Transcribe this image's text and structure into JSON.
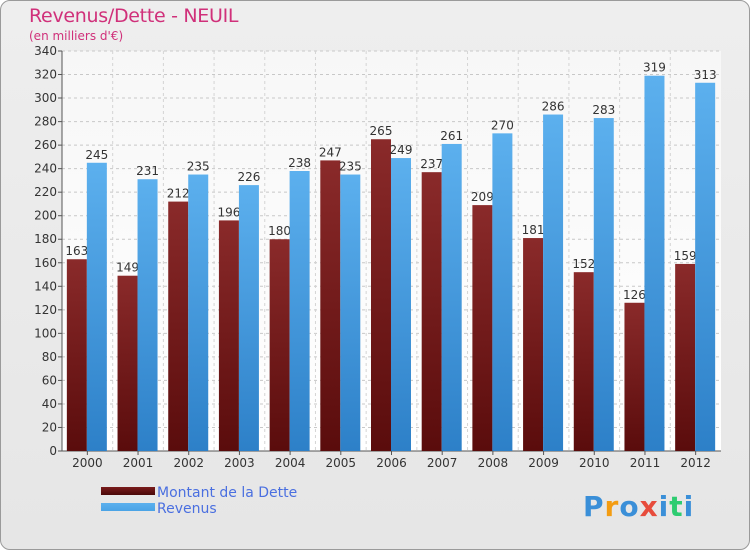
{
  "header": {
    "title": "Revenus/Dette - NEUIL",
    "subtitle": "(en milliers d'€)"
  },
  "chart_data": {
    "type": "bar",
    "categories": [
      "2000",
      "2001",
      "2002",
      "2003",
      "2004",
      "2005",
      "2006",
      "2007",
      "2008",
      "2009",
      "2010",
      "2011",
      "2012"
    ],
    "series": [
      {
        "name": "Montant de la Dette",
        "color": "#7a1c1c",
        "values": [
          163,
          149,
          212,
          196,
          180,
          247,
          265,
          237,
          209,
          181,
          152,
          126,
          159
        ]
      },
      {
        "name": "Revenus",
        "color": "#4aa3e6",
        "values": [
          245,
          231,
          235,
          226,
          238,
          235,
          249,
          261,
          270,
          286,
          283,
          319,
          313
        ]
      }
    ],
    "ylim": [
      0,
      340
    ],
    "yticks": [
      0,
      20,
      40,
      60,
      80,
      100,
      120,
      140,
      160,
      180,
      200,
      220,
      240,
      260,
      280,
      300,
      320,
      340
    ],
    "grid": true,
    "legend_position": "bottom-left"
  },
  "logo": {
    "letters": [
      "P",
      "r",
      "o",
      "x",
      "i",
      "t",
      "i"
    ],
    "colors": [
      "#3a8fd8",
      "#f39c12",
      "#3a8fd8",
      "#e74c3c",
      "#3a8fd8",
      "#2ecc71",
      "#3a8fd8"
    ]
  }
}
